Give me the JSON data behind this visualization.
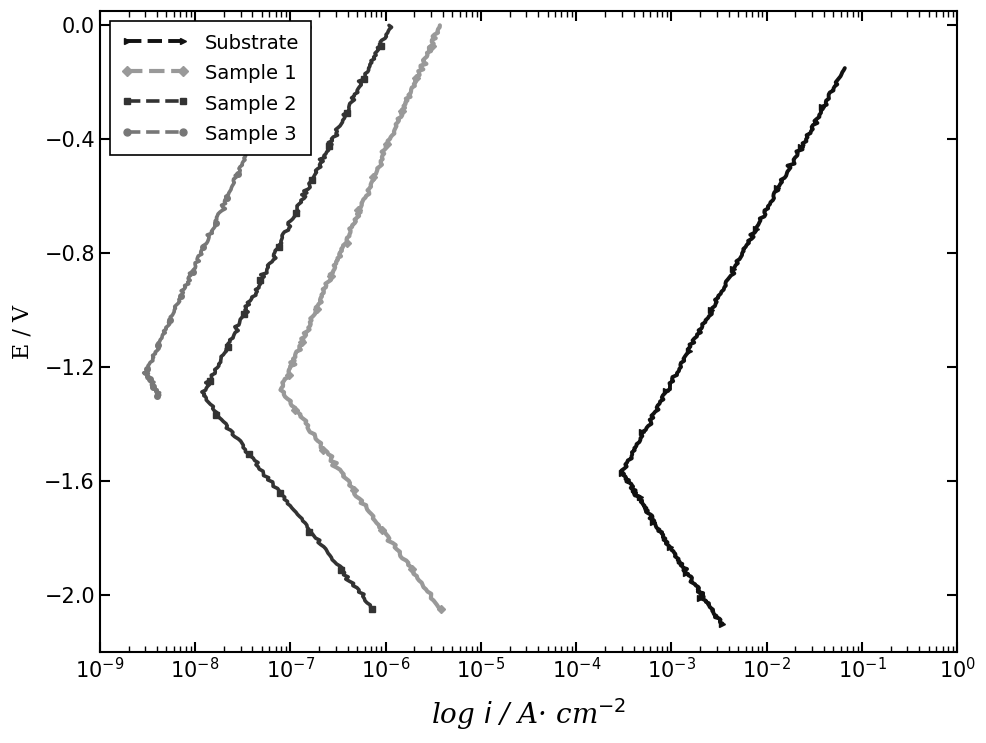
{
  "xlabel": "log $i$ / A· cm$^{-2}$",
  "ylabel": "E / V",
  "ylim": [
    -2.2,
    0.05
  ],
  "yticks": [
    0.0,
    -0.4,
    -0.8,
    -1.2,
    -1.6,
    -2.0
  ],
  "background_color": "#ffffff",
  "series": {
    "substrate": {
      "label": "Substrate",
      "color": "#111111",
      "marker": ">",
      "markersize": 4,
      "linewidth": 2.8
    },
    "sample1": {
      "label": "Sample 1",
      "color": "#999999",
      "marker": "D",
      "markersize": 4,
      "linewidth": 3.0
    },
    "sample2": {
      "label": "Sample 2",
      "color": "#333333",
      "marker": "s",
      "markersize": 4,
      "linewidth": 2.6
    },
    "sample3": {
      "label": "Sample 3",
      "color": "#777777",
      "marker": "o",
      "markersize": 4,
      "linewidth": 2.6
    }
  }
}
